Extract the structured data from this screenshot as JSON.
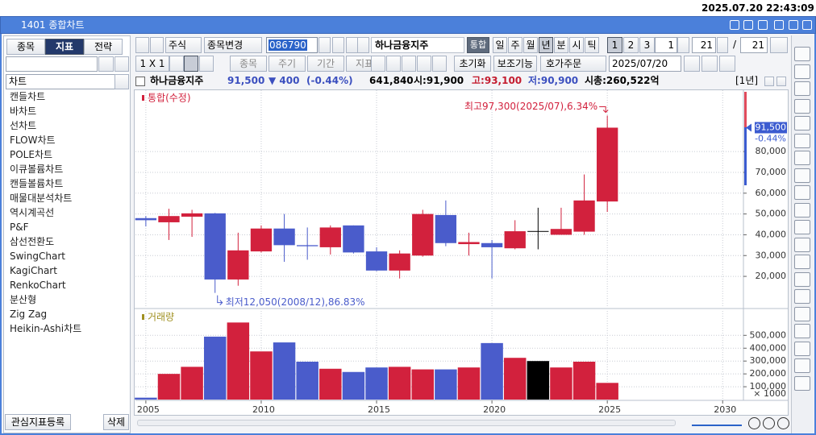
{
  "datetime": "2025.07.20 22:43:09",
  "window": {
    "title": "1401 종합차트"
  },
  "left_panel": {
    "tabs": [
      "종목",
      "지표",
      "전략"
    ],
    "selected_tab": 1,
    "category": "차트",
    "items": [
      "캔들차트",
      "바차트",
      "선차트",
      "FLOW차트",
      "POLE차트",
      "이큐볼륨차트",
      "캔들볼륨차트",
      "매물대분석차트",
      "역시계곡선",
      "P&F",
      "삼선전환도",
      "SwingChart",
      "KagiChart",
      "RenkoChart",
      "분산형",
      "Zig Zag",
      "Heikin-Ashi차트"
    ],
    "buttons": [
      "관심지표등록",
      "삭제"
    ]
  },
  "toolbar": {
    "market": "주식",
    "change": "종목변경",
    "code": "086790",
    "name": "하나금융지주",
    "combined": "통합",
    "periods": [
      "일",
      "주",
      "월",
      "년",
      "분",
      "시",
      "틱"
    ],
    "selected_period": 3,
    "pages": [
      "1",
      "2",
      "3"
    ],
    "selected_page": 0,
    "interval": "1",
    "count": "21",
    "slash": "/",
    "count2": "21",
    "layout": "1 X 1",
    "filters": [
      "종목",
      "주기",
      "기간",
      "지표"
    ],
    "buttons": [
      "초기화",
      "보조기능",
      "호가주문"
    ],
    "date": "2025/07/20"
  },
  "info_bar": {
    "name": "하나금융지주",
    "price": "91,500",
    "change": "▼ 400",
    "change_pct": "(-0.44%)",
    "volume": "641,840",
    "open": "시:91,900",
    "high": "고:93,100",
    "low": "저:90,900",
    "cap": "시총:260,522억",
    "period": "[1년]"
  },
  "chart_data": [
    {
      "type": "candlestick",
      "title": "통합(수정)",
      "up_color": "#d2213d",
      "down_color": "#4a5ccb",
      "flat_color": "#000000",
      "x": [
        2005,
        2006,
        2007,
        2008,
        2009,
        2010,
        2011,
        2012,
        2013,
        2014,
        2015,
        2016,
        2017,
        2018,
        2019,
        2020,
        2021,
        2022,
        2023,
        2024,
        2025
      ],
      "open": [
        48000,
        46000,
        48700,
        50300,
        18500,
        32000,
        43000,
        35000,
        34000,
        44500,
        32000,
        22800,
        30000,
        49500,
        35500,
        36000,
        33500,
        41800,
        40000,
        41500,
        56000
      ],
      "high": [
        49000,
        52500,
        52000,
        50500,
        41000,
        44500,
        50000,
        43500,
        44500,
        44500,
        34000,
        32500,
        52000,
        56500,
        41000,
        37500,
        47000,
        53000,
        53000,
        69000,
        97300
      ],
      "low": [
        44000,
        37500,
        39000,
        12050,
        15500,
        31500,
        27000,
        28000,
        30500,
        31000,
        22500,
        19000,
        29500,
        34500,
        30000,
        19000,
        33000,
        33000,
        40000,
        40000,
        51000
      ],
      "close": [
        47000,
        49000,
        50300,
        18500,
        32500,
        43000,
        35000,
        34500,
        43500,
        31500,
        22800,
        31000,
        50000,
        36000,
        36500,
        34000,
        41700,
        41800,
        42800,
        56500,
        91500
      ],
      "xlim": [
        2004.55,
        2030.9
      ],
      "ylim": [
        5700,
        109500
      ],
      "yticks": [
        {
          "value": 20000,
          "label": "20,000"
        },
        {
          "value": 30000,
          "label": "30,000"
        },
        {
          "value": 40000,
          "label": "40,000"
        },
        {
          "value": 50000,
          "label": "50,000"
        },
        {
          "value": 60000,
          "label": "60,000"
        },
        {
          "value": 70000,
          "label": "70,000"
        },
        {
          "value": 80000,
          "label": "80,000"
        }
      ],
      "last_price": {
        "value": 91500,
        "label": "91,500"
      },
      "last_change": "-0.44%",
      "annotations": [
        {
          "text": "최고97,300(2025/07),6.34%",
          "x": 2025,
          "y": 97300
        },
        {
          "text": "최저12,050(2008/12),86.83%",
          "x": 2008,
          "y": 12050
        }
      ],
      "grid": true
    },
    {
      "type": "bar",
      "title": "거래량",
      "x": [
        2005,
        2006,
        2007,
        2008,
        2009,
        2010,
        2011,
        2012,
        2013,
        2014,
        2015,
        2016,
        2017,
        2018,
        2019,
        2020,
        2021,
        2022,
        2023,
        2024,
        2025
      ],
      "values": [
        15000,
        200000,
        255000,
        490000,
        600000,
        375000,
        445000,
        295000,
        240000,
        215000,
        250000,
        255000,
        235000,
        235000,
        250000,
        440000,
        325000,
        300000,
        250000,
        295000,
        130000
      ],
      "xlim": [
        2004.55,
        2030.9
      ],
      "xticks": [
        2005,
        2010,
        2015,
        2020,
        2025,
        2030
      ],
      "ylim": [
        -6000,
        690000
      ],
      "yticks": [
        {
          "value": 100000,
          "label": "100,000"
        },
        {
          "value": 200000,
          "label": "200,000"
        },
        {
          "value": 300000,
          "label": "300,000"
        },
        {
          "value": 400000,
          "label": "400,000"
        },
        {
          "value": 500000,
          "label": "500,000"
        }
      ],
      "unit_label": "× 1000",
      "grid": true
    }
  ]
}
